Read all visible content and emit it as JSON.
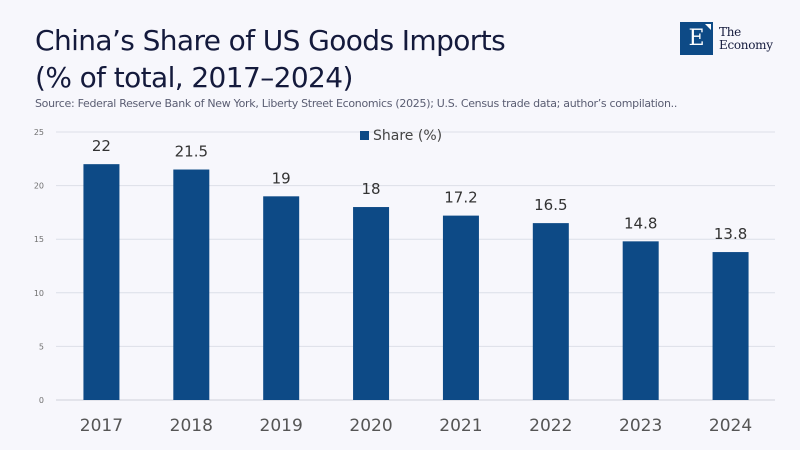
{
  "header": {
    "title_line1": "China’s Share of US Goods Imports",
    "title_line2": "(% of total, 2017–2024)",
    "source": "Source:  Federal Reserve Bank of New York, Liberty Street Economics (2025); U.S. Census trade data; author’s compilation.."
  },
  "logo": {
    "letter": "E",
    "line1": "The",
    "line2": "Economy"
  },
  "colors": {
    "bar": "#0d4a86",
    "grid": "#dcdfe8",
    "background": "#f7f7fc"
  },
  "chart_data": {
    "type": "bar",
    "title": "China’s Share of US Goods Imports (% of total, 2017–2024)",
    "xlabel": "",
    "ylabel": "",
    "categories": [
      "2017",
      "2018",
      "2019",
      "2020",
      "2021",
      "2022",
      "2023",
      "2024"
    ],
    "series": [
      {
        "name": "Share (%)",
        "values": [
          22,
          21.5,
          19,
          18,
          17.2,
          16.5,
          14.8,
          13.8
        ]
      }
    ],
    "data_labels": [
      "22",
      "21.5",
      "19",
      "18",
      "17.2",
      "16.5",
      "14.8",
      "13.8"
    ],
    "ylim": [
      0,
      25
    ],
    "yticks": [
      0,
      5,
      10,
      15,
      20,
      25
    ],
    "grid": true,
    "legend": "top-center"
  }
}
